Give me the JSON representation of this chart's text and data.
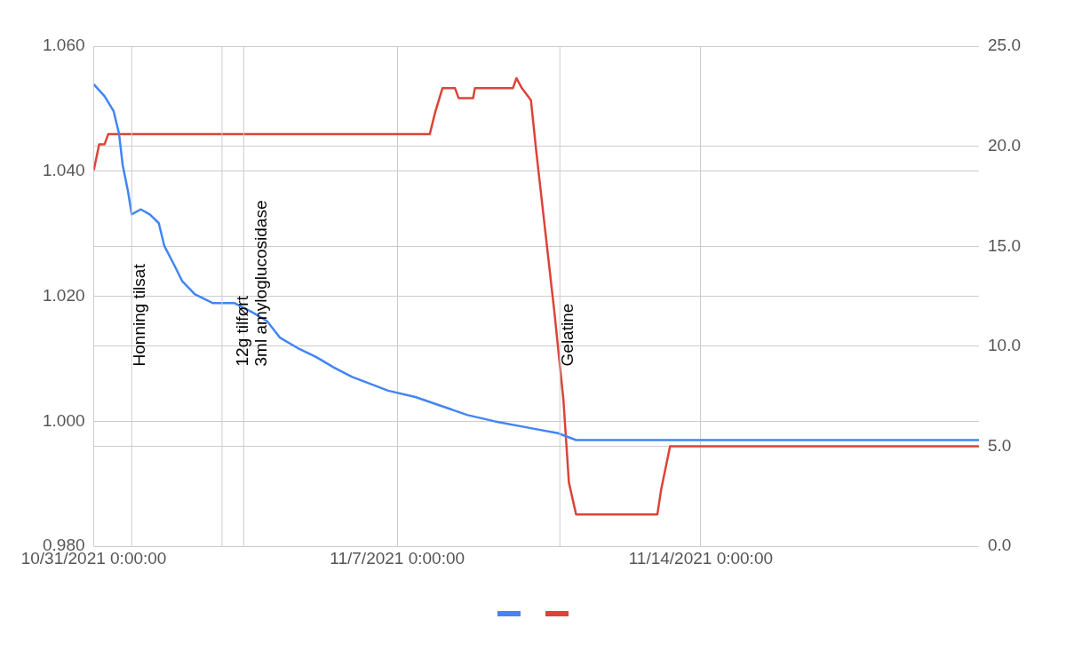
{
  "chart_data": {
    "type": "line",
    "xlim": [
      "2021-10-31T00:00",
      "2021-11-20T10:00"
    ],
    "xticks": [
      {
        "value": "2021-10-31T00:00",
        "label": "10/31/2021 0:00:00"
      },
      {
        "value": "2021-11-07T00:00",
        "label": "11/7/2021 0:00:00"
      },
      {
        "value": "2021-11-14T00:00",
        "label": "11/14/2021 0:00:00"
      }
    ],
    "ylim": [
      0.98,
      1.06
    ],
    "yticks": [
      {
        "value": 0.98,
        "label": "0.980"
      },
      {
        "value": 1.0,
        "label": "1.000"
      },
      {
        "value": 1.02,
        "label": "1.020"
      },
      {
        "value": 1.04,
        "label": "1.040"
      },
      {
        "value": 1.06,
        "label": "1.060"
      }
    ],
    "y2lim": [
      0,
      25
    ],
    "y2ticks": [
      {
        "value": 0,
        "label": "0.0"
      },
      {
        "value": 5,
        "label": "5.0"
      },
      {
        "value": 10,
        "label": "10.0"
      },
      {
        "value": 15,
        "label": "15.0"
      },
      {
        "value": 20,
        "label": "20.0"
      },
      {
        "value": 25,
        "label": "25.0"
      }
    ],
    "grid": true,
    "series": [
      {
        "color": "#4285f4",
        "x": [
          "2021-10-31T00:00",
          "2021-10-31T06:00",
          "2021-10-31T11:00",
          "2021-10-31T14:00",
          "2021-10-31T16:00",
          "2021-10-31T19:00",
          "2021-10-31T21:00",
          "2021-11-01T02:00",
          "2021-11-01T07:00",
          "2021-11-01T12:00",
          "2021-11-01T15:00",
          "2021-11-01T20:00",
          "2021-11-02T01:00",
          "2021-11-02T08:00",
          "2021-11-02T18:00",
          "2021-11-03T06:00",
          "2021-11-03T16:00",
          "2021-11-04T00:00",
          "2021-11-04T07:00",
          "2021-11-04T17:00",
          "2021-11-05T03:00",
          "2021-11-05T13:00",
          "2021-11-05T23:00",
          "2021-11-06T09:00",
          "2021-11-06T19:00",
          "2021-11-07T10:00",
          "2021-11-08T01:00",
          "2021-11-08T15:00",
          "2021-11-09T06:00",
          "2021-11-10T02:00",
          "2021-11-10T17:00",
          "2021-11-11T03:00",
          "2021-11-12T04:00",
          "2021-11-14T06:00",
          "2021-11-16T07:00",
          "2021-11-18T09:00",
          "2021-11-20T10:00"
        ],
        "values": [
          1.0539,
          1.052,
          1.0496,
          1.046,
          1.041,
          1.0367,
          1.0331,
          1.0339,
          1.0331,
          1.0317,
          1.0281,
          1.0253,
          1.0224,
          1.0203,
          1.0189,
          1.0189,
          1.0174,
          1.016,
          1.0134,
          1.0117,
          1.0103,
          1.0086,
          1.0071,
          1.006,
          1.0049,
          1.0039,
          1.0024,
          1.001,
          1.0,
          0.9989,
          0.9981,
          0.997,
          0.997,
          0.997,
          0.997,
          0.997,
          0.997
        ]
      },
      {
        "color": "#db4437",
        "axis": "y2",
        "x": [
          "2021-10-31T00:00",
          "2021-10-31T03:00",
          "2021-10-31T06:00",
          "2021-10-31T08:00",
          "2021-11-01T20:00",
          "2021-11-07T18:00",
          "2021-11-07T21:00",
          "2021-11-08T01:00",
          "2021-11-08T08:00",
          "2021-11-08T10:00",
          "2021-11-08T18:00",
          "2021-11-08T19:00",
          "2021-11-09T16:00",
          "2021-11-09T18:00",
          "2021-11-09T21:00",
          "2021-11-10T02:00",
          "2021-11-10T05:00",
          "2021-11-10T10:00",
          "2021-11-10T15:00",
          "2021-11-10T20:00",
          "2021-11-10T23:00",
          "2021-11-11T03:00",
          "2021-11-13T00:00",
          "2021-11-13T02:00",
          "2021-11-13T07:00",
          "2021-11-20T10:00"
        ],
        "values": [
          18.8,
          20.1,
          20.1,
          20.6,
          20.6,
          20.6,
          21.7,
          22.9,
          22.9,
          22.4,
          22.4,
          22.9,
          22.9,
          23.4,
          22.9,
          22.3,
          19.7,
          15.7,
          11.7,
          7.3,
          3.2,
          1.6,
          1.6,
          2.8,
          5.0,
          5.0
        ]
      }
    ],
    "ref_lines": [
      {
        "axis": "x",
        "value": "2021-10-31T21:00",
        "label": "Honning tilsat"
      },
      {
        "axis": "x",
        "value": "2021-11-02T23:00"
      },
      {
        "axis": "x",
        "value": "2021-11-03T11:00",
        "label": "12g tilført\n3ml amyloglucosidase"
      },
      {
        "axis": "x",
        "value": "2021-11-10T18:00",
        "label": "Gelatine"
      }
    ]
  }
}
